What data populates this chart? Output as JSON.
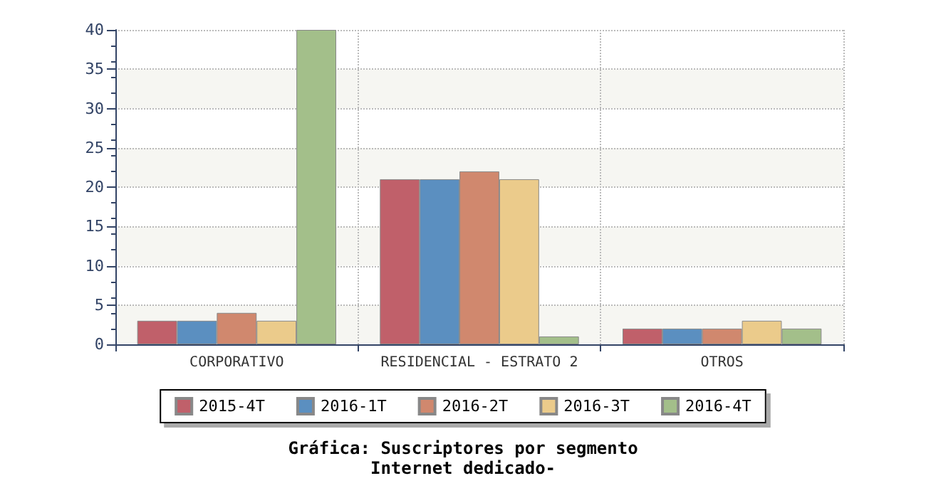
{
  "chart_data": {
    "type": "bar",
    "title": "Gráfica: Suscriptores por segmento",
    "subtitle": "Internet dedicado-",
    "categories": [
      "CORPORATIVO",
      "RESIDENCIAL - ESTRATO 2",
      "OTROS"
    ],
    "series": [
      {
        "name": "2015-4T",
        "color": "#c0606a",
        "values": [
          3,
          21,
          2
        ]
      },
      {
        "name": "2016-1T",
        "color": "#5b8fc0",
        "values": [
          3,
          21,
          2
        ]
      },
      {
        "name": "2016-2T",
        "color": "#d0886e",
        "values": [
          4,
          22,
          2
        ]
      },
      {
        "name": "2016-3T",
        "color": "#ebcb8b",
        "values": [
          3,
          21,
          3
        ]
      },
      {
        "name": "2016-4T",
        "color": "#a3bf8a",
        "values": [
          40,
          1,
          2
        ]
      }
    ],
    "ylim": [
      0,
      40
    ],
    "yticks": [
      0,
      5,
      10,
      15,
      20,
      25,
      30,
      35,
      40
    ],
    "grid": true,
    "legend": "bottom"
  }
}
